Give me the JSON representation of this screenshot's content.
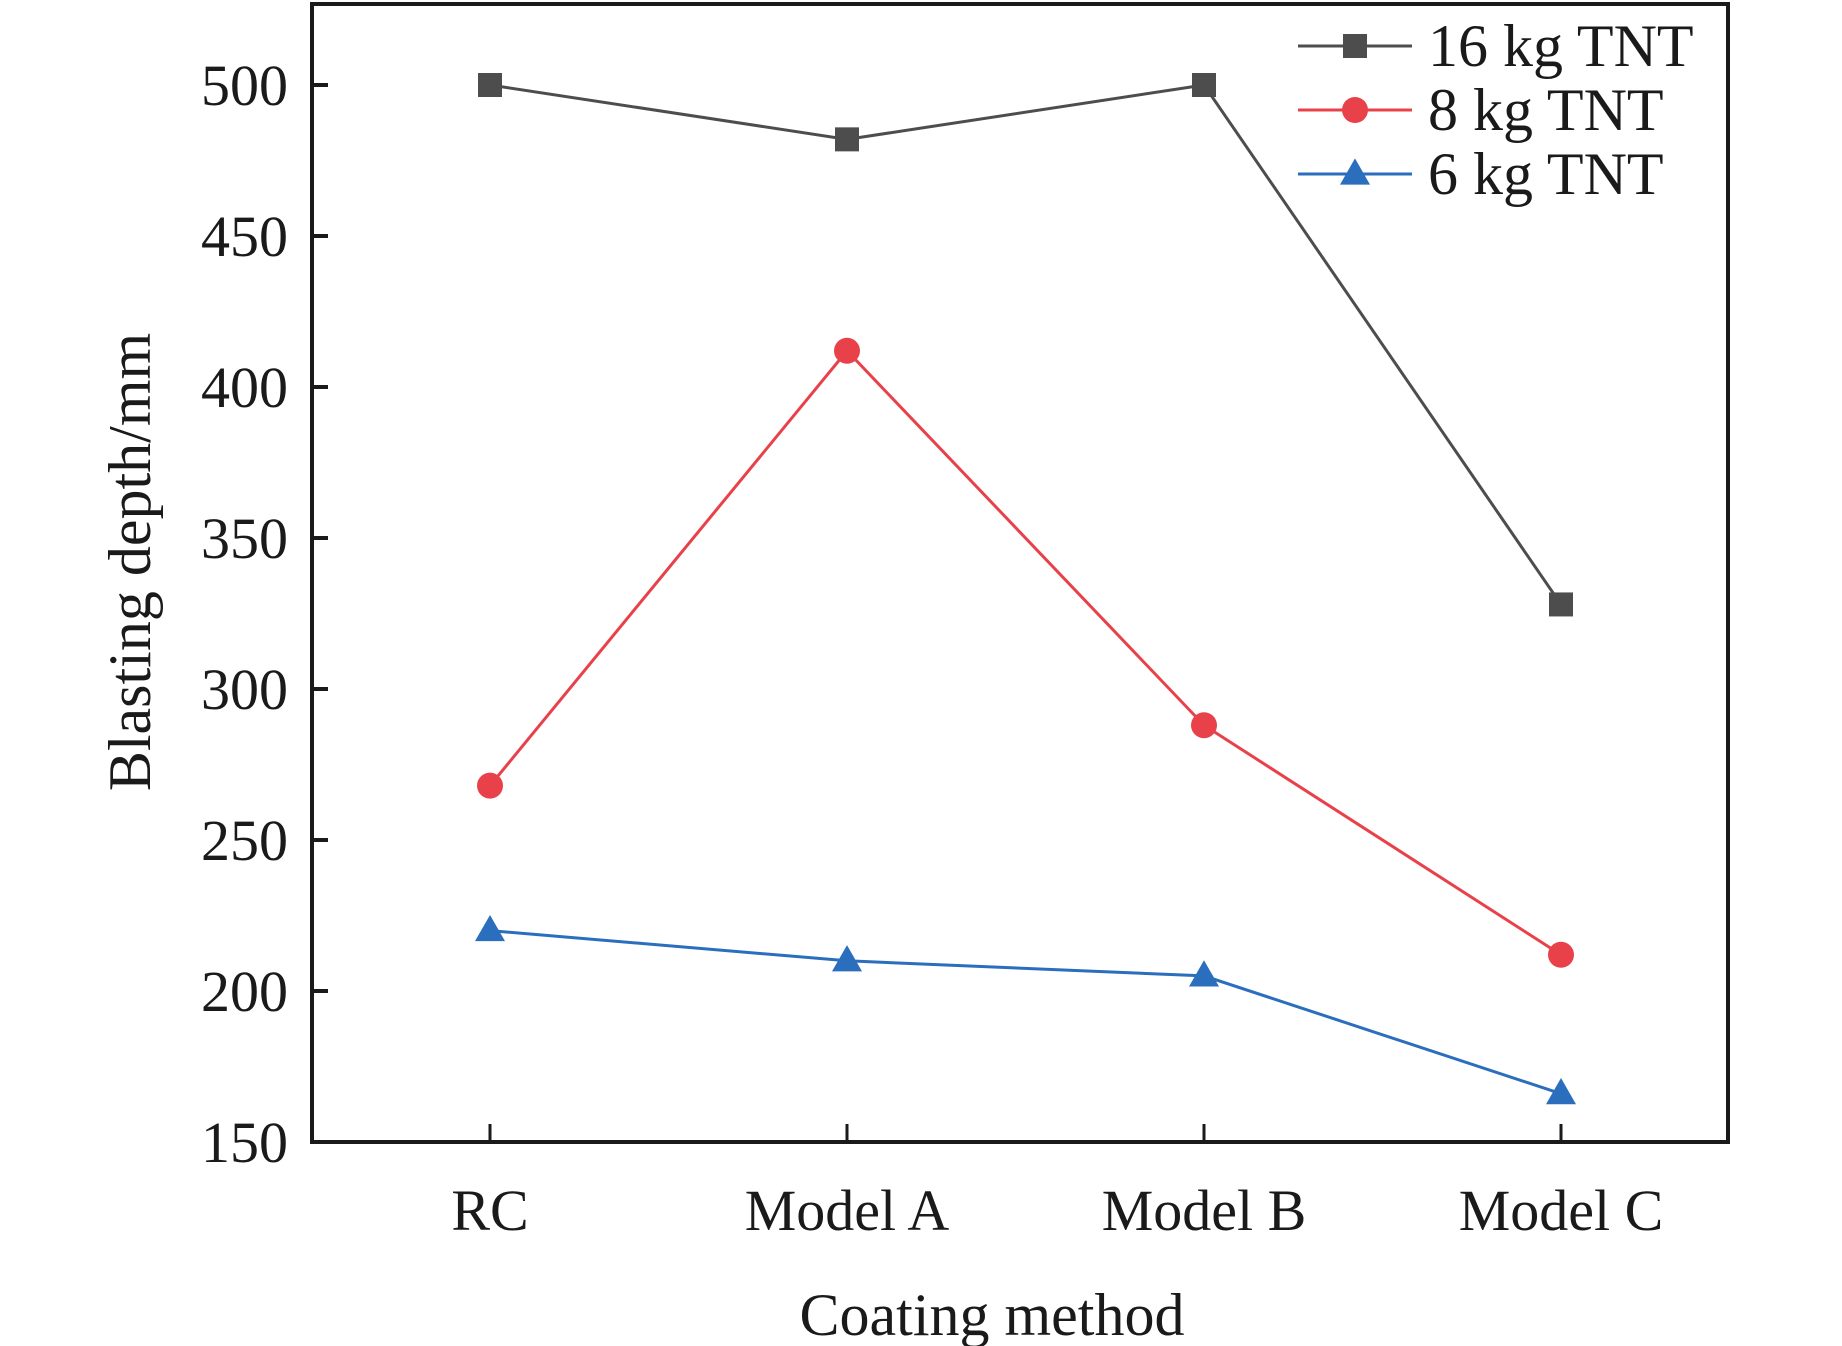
{
  "chart_data": {
    "type": "line",
    "title": "",
    "xlabel": "Coating method",
    "ylabel": "Blasting depth/mm",
    "categories": [
      "RC",
      "Model A",
      "Model B",
      "Model C"
    ],
    "ylim": [
      150,
      500
    ],
    "yticks": [
      150,
      200,
      250,
      300,
      350,
      400,
      450,
      500
    ],
    "grid": false,
    "legend_position": "top-right",
    "series": [
      {
        "name": "16 kg TNT",
        "color": "#4d4d4d",
        "marker": "square",
        "values": [
          500,
          482,
          500,
          328
        ]
      },
      {
        "name": "8 kg TNT",
        "color": "#e8414a",
        "marker": "circle",
        "values": [
          268,
          412,
          288,
          212
        ]
      },
      {
        "name": "6 kg TNT",
        "color": "#2a6ebd",
        "marker": "triangle",
        "values": [
          220,
          210,
          205,
          166
        ]
      }
    ]
  }
}
